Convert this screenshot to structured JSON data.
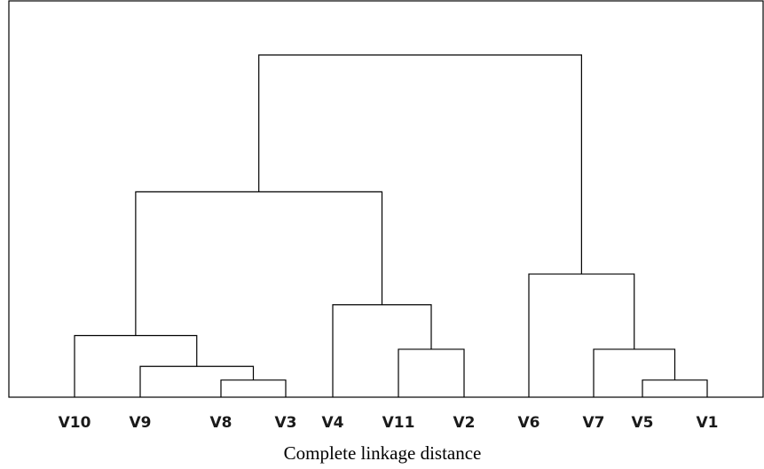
{
  "leaves": [
    "V10",
    "V9",
    "V8",
    "V3",
    "V4",
    "V11",
    "V2",
    "V6",
    "V7",
    "V5",
    "V1"
  ],
  "merges": [
    {
      "left": "V8",
      "right": "V3",
      "height": 0.05,
      "id": "m1"
    },
    {
      "left": "V5",
      "right": "V1",
      "height": 0.05,
      "id": "m2"
    },
    {
      "left": "V9",
      "right": "m1",
      "height": 0.09,
      "id": "m3"
    },
    {
      "left": "V11",
      "right": "V2",
      "height": 0.14,
      "id": "m4"
    },
    {
      "left": "V7",
      "right": "m2",
      "height": 0.14,
      "id": "m5"
    },
    {
      "left": "V10",
      "right": "m3",
      "height": 0.18,
      "id": "m6"
    },
    {
      "left": "V4",
      "right": "m4",
      "height": 0.27,
      "id": "m7"
    },
    {
      "left": "V6",
      "right": "m5",
      "height": 0.36,
      "id": "m8"
    },
    {
      "left": "m6",
      "right": "m7",
      "height": 0.6,
      "id": "m9"
    },
    {
      "left": "m9",
      "right": "m8",
      "height": 1.0,
      "id": "m10"
    }
  ],
  "caption": "Complete linkage distance"
}
